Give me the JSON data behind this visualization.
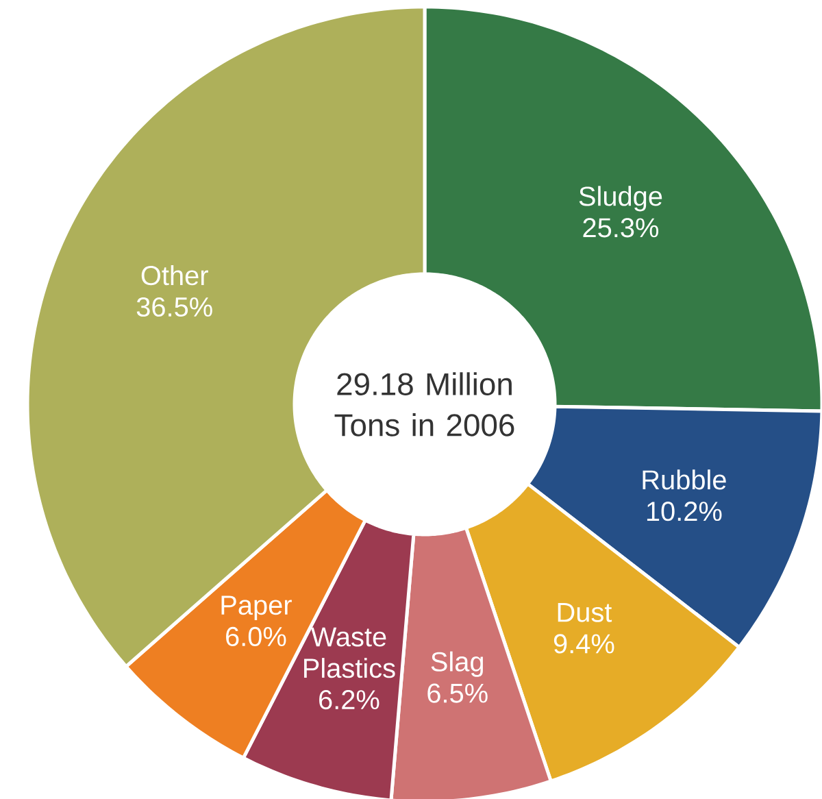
{
  "chart_data": {
    "type": "donut",
    "categories": [
      "Sludge",
      "Rubble",
      "Dust",
      "Slag",
      "Waste Plastics",
      "Paper",
      "Other"
    ],
    "values": [
      25.3,
      10.2,
      9.4,
      6.5,
      6.2,
      6.0,
      36.5
    ],
    "colors": [
      "#357a46",
      "#254f87",
      "#e6ac27",
      "#cf7373",
      "#9c3a50",
      "#ee7f22",
      "#aeb05a"
    ],
    "value_labels": [
      "25.3%",
      "10.2%",
      "9.4%",
      "6.5%",
      "6.2%",
      "6.0%",
      "36.5%"
    ],
    "annotations": [
      "29.18 Million Tons in 2006"
    ]
  }
}
